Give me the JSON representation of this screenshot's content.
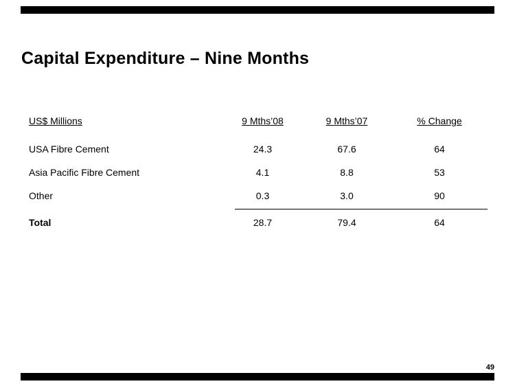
{
  "slide": {
    "title": "Capital Expenditure – Nine Months",
    "page_number": "49"
  },
  "table": {
    "headers": [
      "US$ Millions",
      "9 Mths’08",
      "9 Mths’07",
      "% Change"
    ],
    "rows": [
      {
        "label": "USA Fibre Cement",
        "mths08": "24.3",
        "mths07": "67.6",
        "change": "64"
      },
      {
        "label": "Asia Pacific Fibre Cement",
        "mths08": "4.1",
        "mths07": "8.8",
        "change": "53"
      },
      {
        "label": "Other",
        "mths08": "0.3",
        "mths07": "3.0",
        "change": "90"
      },
      {
        "label": "Total",
        "mths08": "28.7",
        "mths07": "79.4",
        "change": "64"
      }
    ]
  },
  "chart_data": {
    "type": "table",
    "title": "Capital Expenditure – Nine Months",
    "unit": "US$ Millions",
    "categories": [
      "USA Fibre Cement",
      "Asia Pacific Fibre Cement",
      "Other",
      "Total"
    ],
    "series": [
      {
        "name": "9 Mths’08",
        "values": [
          24.3,
          4.1,
          0.3,
          28.7
        ]
      },
      {
        "name": "9 Mths’07",
        "values": [
          67.6,
          8.8,
          3.0,
          79.4
        ]
      },
      {
        "name": "% Change",
        "values": [
          64,
          53,
          90,
          64
        ]
      }
    ]
  }
}
